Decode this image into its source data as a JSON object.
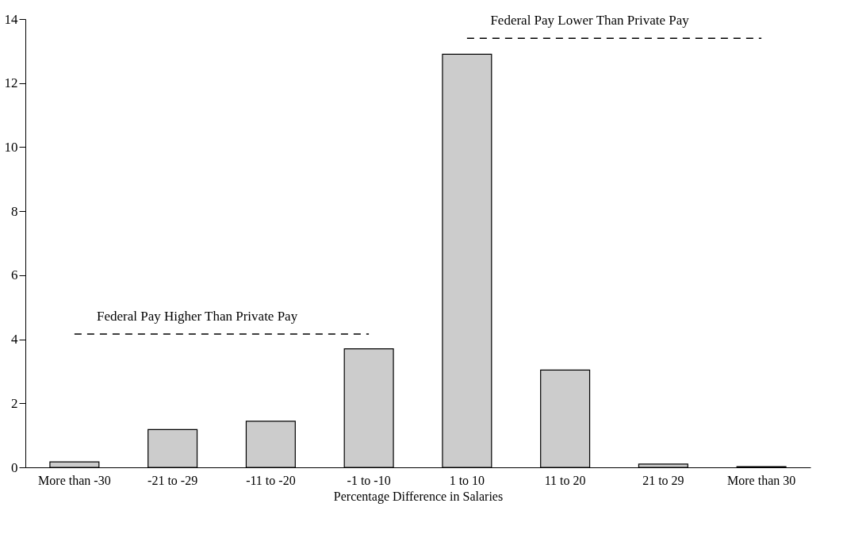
{
  "chart_data": {
    "type": "bar",
    "xlabel": "Percentage Difference in Salaries",
    "categories": [
      "More than -30",
      "-21 to -29",
      "-11 to -20",
      "-1 to -10",
      "1 to 10",
      "11 to 20",
      "21 to 29",
      "More than 30"
    ],
    "series": [
      {
        "color": "#cccccc",
        "values": [
          0.17,
          1.18,
          1.44,
          3.7,
          12.9,
          3.04,
          0.1,
          0.02
        ]
      },
      {
        "type": "line",
        "name": "Federal Pay Higher Than Private Pay",
        "color": "#000000",
        "line_style": "dashed",
        "values": [
          4.16,
          4.16,
          4.16,
          4.16,
          null,
          null,
          null,
          null
        ]
      },
      {
        "type": "line",
        "name": "Federal Pay Lower Than Private Pay",
        "color": "#000000",
        "line_style": "dashed",
        "values": [
          null,
          null,
          null,
          null,
          13.4,
          13.4,
          13.4,
          13.4
        ]
      }
    ],
    "ylim": [
      0,
      14
    ],
    "yticks": [
      0,
      2,
      4,
      6,
      8,
      10,
      12,
      14
    ],
    "grid": false
  }
}
